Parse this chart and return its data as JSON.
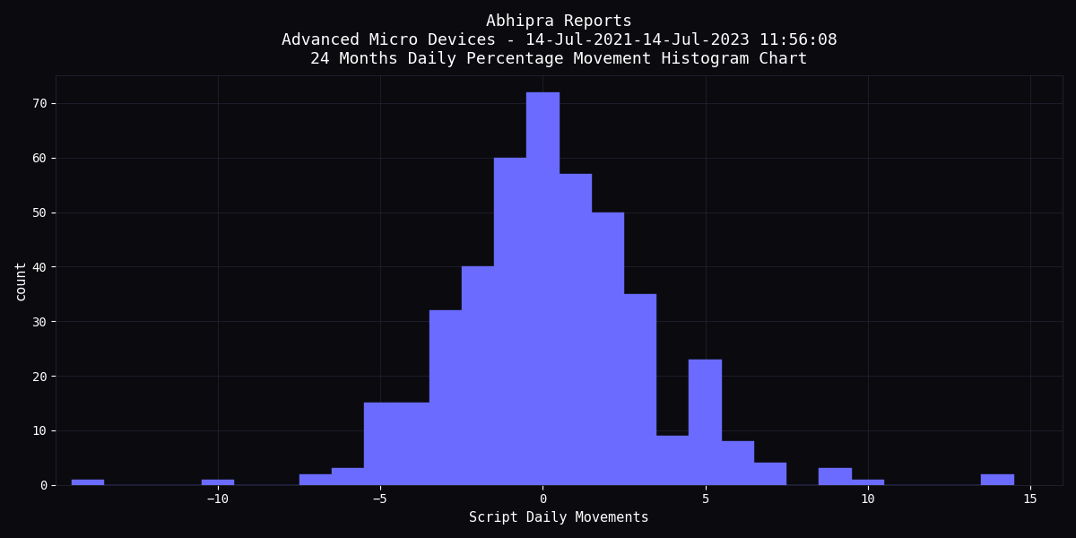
{
  "title_line1": "Abhipra Reports",
  "title_line2": "Advanced Micro Devices - 14-Jul-2021-14-Jul-2023 11:56:08",
  "title_line3": "24 Months Daily Percentage Movement Histogram Chart",
  "xlabel": "Script Daily Movements",
  "ylabel": "count",
  "background_color": "#0a0a0f",
  "bar_color": "#6b6bff",
  "text_color": "#ffffff",
  "grid_color": "#2a2a3a",
  "title_fontsize": 13,
  "label_fontsize": 11,
  "tick_fontsize": 10,
  "xlim": [
    -15,
    16
  ],
  "ylim": [
    0,
    75
  ],
  "yticks": [
    0,
    10,
    20,
    30,
    40,
    50,
    60,
    70
  ],
  "xticks": [
    -10,
    -5,
    0,
    5,
    10,
    15
  ],
  "bar_centers": [
    -14,
    -13,
    -12,
    -11,
    -10,
    -9,
    -8,
    -7,
    -6,
    -5,
    -4,
    -3,
    -2,
    -1,
    0,
    1,
    2,
    3,
    4,
    5,
    6,
    7,
    8,
    9,
    10,
    11,
    12,
    13,
    14
  ],
  "counts": [
    1,
    0,
    0,
    0,
    1,
    0,
    0,
    2,
    3,
    15,
    15,
    32,
    40,
    60,
    72,
    57,
    50,
    35,
    9,
    23,
    8,
    4,
    0,
    3,
    1,
    0,
    0,
    0,
    2
  ]
}
